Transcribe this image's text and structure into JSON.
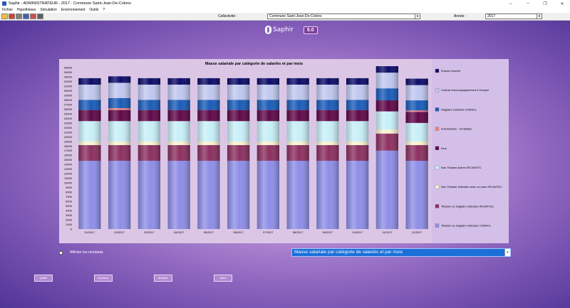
{
  "window": {
    "title": "Saphir - ADMINISTRATEUR - 2017 - Commune Saint-Jean-De-Colons",
    "controls": [
      "↔",
      "–",
      "❐",
      "✕"
    ]
  },
  "menu": [
    "Fichier",
    "Hypothèses",
    "Simulation",
    "Environnement",
    "Outils",
    "?"
  ],
  "toolbar": {
    "icons": [
      "new-icon",
      "delete-icon",
      "print-icon",
      "export-icon",
      "chart-icon",
      "save-icon"
    ],
    "colors": [
      "#f0c040",
      "#d04030",
      "#808080",
      "#4060b0",
      "#d05050",
      "#606060"
    ]
  },
  "selectors": {
    "collectivite_label": "Collectivité :",
    "collectivite_value": "Commune Saint-Jean-De-Colons",
    "annee_label": "Année :",
    "annee_value": "2017"
  },
  "logo": {
    "text": "Saphir",
    "version": "5.0"
  },
  "chart_data": {
    "type": "bar",
    "stacked": true,
    "title": "Masse salariale par catégorie de salariés et par mois",
    "xlabel": "",
    "ylabel": "",
    "ylim": [
      0,
      35000
    ],
    "y_ticks": [
      0,
      1000,
      2000,
      3000,
      4000,
      5000,
      6000,
      7000,
      8000,
      9000,
      10000,
      11000,
      12000,
      13000,
      14000,
      15000,
      16000,
      17000,
      18000,
      19000,
      20000,
      21000,
      22000,
      23000,
      24000,
      25000,
      26000,
      27000,
      28000,
      29000,
      30000,
      31000,
      32000,
      33000,
      34000,
      35000
    ],
    "categories": [
      "01/2017",
      "02/2017",
      "03/2017",
      "04/2017",
      "05/2017",
      "06/2017",
      "07/2017",
      "08/2017",
      "09/2017",
      "10/2017",
      "11/2017",
      "12/2017"
    ],
    "legend_position": "right",
    "series": [
      {
        "name": "Titulaire ou stagiaire indiciaire CNRACL",
        "color": "#8e8ee8",
        "values": [
          14800,
          14800,
          14800,
          14800,
          14800,
          14800,
          14800,
          14800,
          14800,
          14800,
          17000,
          14800
        ]
      },
      {
        "name": "Titulaire ou stagiaire indiciaire IRCANTEC",
        "color": "#8c3060",
        "values": [
          3400,
          3400,
          3400,
          3400,
          3400,
          3400,
          3400,
          3400,
          3400,
          3400,
          3700,
          3400
        ]
      },
      {
        "name": "Non Titulaire Indiciaire avec ou sans IRCANTEC",
        "color": "#f8f4d0",
        "values": [
          800,
          800,
          800,
          800,
          800,
          800,
          800,
          800,
          800,
          800,
          900,
          800
        ]
      },
      {
        "name": "Non Titulaire Autres IRCANTEC",
        "color": "#c8f0f8",
        "values": [
          4400,
          4400,
          4400,
          4400,
          4400,
          4400,
          4400,
          4400,
          4400,
          4400,
          3900,
          4000
        ]
      },
      {
        "name": "Elus",
        "color": "#600848",
        "values": [
          2400,
          2400,
          2400,
          2400,
          2400,
          2400,
          2400,
          2400,
          2400,
          2400,
          2400,
          2400
        ]
      },
      {
        "name": "Indemnitaire - Forfaitaire",
        "color": "#f08080",
        "values": [
          0,
          400,
          0,
          0,
          0,
          0,
          0,
          0,
          0,
          0,
          0,
          300
        ]
      },
      {
        "name": "Stagiaire Indiciaire CNRACL",
        "color": "#1a5cb8",
        "values": [
          2200,
          2200,
          2200,
          2200,
          2200,
          2200,
          2200,
          2200,
          2200,
          2200,
          2600,
          2200
        ]
      },
      {
        "name": "Contrat d'accompagnement à l'emploi",
        "color": "#c0c8f0",
        "values": [
          3300,
          3300,
          3300,
          3300,
          3300,
          3300,
          3300,
          3300,
          3300,
          3300,
          3400,
          3300
        ]
      },
      {
        "name": "Emploi d'avenir",
        "color": "#0c0c68",
        "values": [
          1400,
          1400,
          1400,
          1400,
          1400,
          1400,
          1400,
          1400,
          1400,
          1400,
          1400,
          1400
        ]
      }
    ],
    "legend_order": [
      "Emploi d'avenir",
      "Contrat d'accompagnement à l'emploi",
      "Stagiaire Indiciaire CNRACL",
      "Indemnitaire - Forfaitaire",
      "Elus",
      "Non Titulaire Autres IRCANTEC",
      "Non Titulaire Indiciaire avec ou sans IRCANTEC",
      "Titulaire ou stagiaire indiciaire IRCANTEC",
      "Titulaire ou stagiaire indiciaire CNRACL"
    ]
  },
  "options": {
    "show_amounts_label": "Afficher les montants",
    "chart_select_value": "Masse salariale par catégorie de salariés et par mois"
  },
  "bottom_buttons": [
    "quitter",
    "imprimer",
    "analyse",
    "infos"
  ]
}
